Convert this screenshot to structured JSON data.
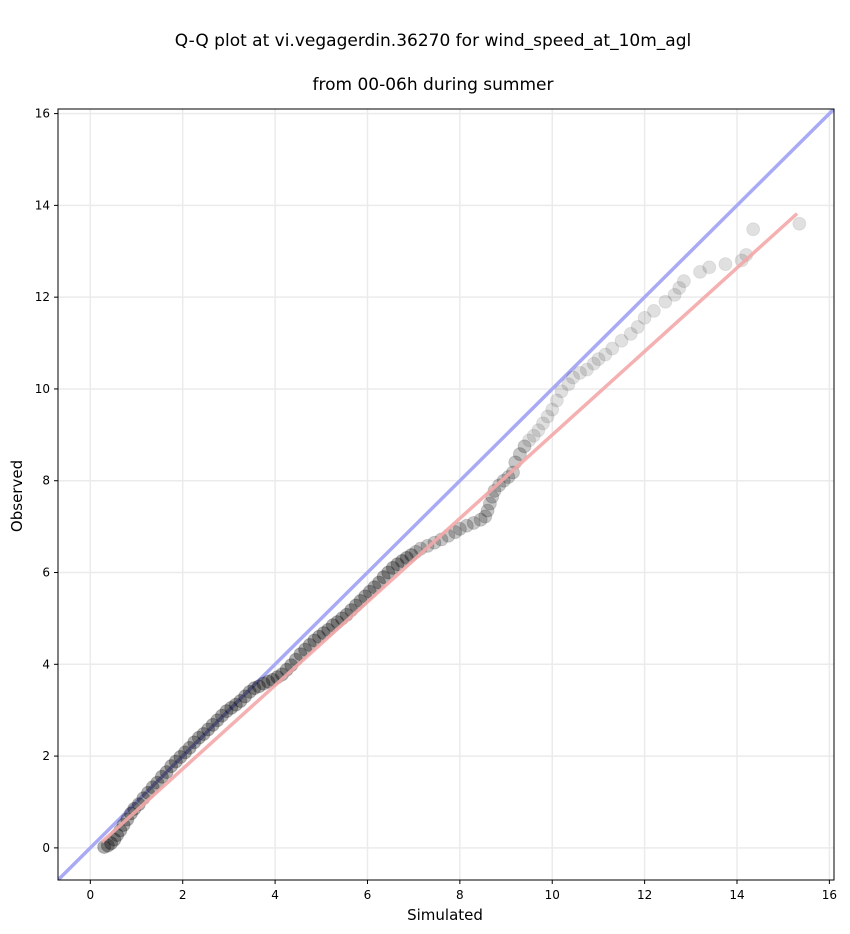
{
  "chart_data": {
    "type": "scatter",
    "title_lines": [
      "Q-Q plot at vi.vegagerdin.36270 for wind_speed_at_10m_agl",
      "from 00-06h during summer"
    ],
    "xlabel": "Simulated",
    "ylabel": "Observed",
    "xlim": [
      -0.7,
      16.1
    ],
    "ylim": [
      -0.7,
      16.1
    ],
    "xticks": [
      0,
      2,
      4,
      6,
      8,
      10,
      12,
      14,
      16
    ],
    "yticks": [
      0,
      2,
      4,
      6,
      8,
      10,
      12,
      14,
      16
    ],
    "grid": true,
    "reference_line": {
      "name": "1:1",
      "from": [
        -0.7,
        -0.7
      ],
      "to": [
        16.1,
        16.1
      ],
      "color": "#a9aaf5"
    },
    "fit_line": {
      "from": [
        0.25,
        0.13
      ],
      "to": [
        15.3,
        13.82
      ],
      "color": "#f4a9a9"
    },
    "points": {
      "color": "#000000",
      "x": [
        0.3,
        0.38,
        0.45,
        0.52,
        0.58,
        0.65,
        0.72,
        0.8,
        0.88,
        0.95,
        1.05,
        1.15,
        1.25,
        1.35,
        1.45,
        1.55,
        1.65,
        1.75,
        1.85,
        1.95,
        2.05,
        2.15,
        2.25,
        2.35,
        2.45,
        2.55,
        2.65,
        2.75,
        2.85,
        2.95,
        3.05,
        3.15,
        3.25,
        3.35,
        3.45,
        3.55,
        3.65,
        3.75,
        3.85,
        3.95,
        4.05,
        4.15,
        4.25,
        4.35,
        4.45,
        4.55,
        4.65,
        4.75,
        4.85,
        4.95,
        5.05,
        5.15,
        5.25,
        5.35,
        5.45,
        5.55,
        5.65,
        5.75,
        5.85,
        5.95,
        6.05,
        6.15,
        6.25,
        6.35,
        6.45,
        6.55,
        6.65,
        6.75,
        6.85,
        6.95,
        7.05,
        7.15,
        7.3,
        7.45,
        7.6,
        7.75,
        7.9,
        8.0,
        8.15,
        8.3,
        8.45,
        8.55,
        8.6,
        8.65,
        8.7,
        8.75,
        8.85,
        8.95,
        9.05,
        9.15,
        9.2,
        9.3,
        9.4,
        9.5,
        9.6,
        9.7,
        9.8,
        9.9,
        10.0,
        10.1,
        10.2,
        10.35,
        10.45,
        10.6,
        10.75,
        10.9,
        11.0,
        11.15,
        11.3,
        11.5,
        11.7,
        11.85,
        12.0,
        12.2,
        12.45,
        12.65,
        12.75,
        12.85,
        13.2,
        13.4,
        13.75,
        14.1,
        14.2,
        14.35,
        15.35
      ],
      "y": [
        0.02,
        0.05,
        0.1,
        0.18,
        0.28,
        0.38,
        0.5,
        0.62,
        0.75,
        0.85,
        0.95,
        1.08,
        1.2,
        1.32,
        1.42,
        1.55,
        1.65,
        1.78,
        1.88,
        1.98,
        2.08,
        2.18,
        2.3,
        2.4,
        2.48,
        2.58,
        2.68,
        2.78,
        2.88,
        2.98,
        3.05,
        3.12,
        3.2,
        3.3,
        3.4,
        3.48,
        3.52,
        3.58,
        3.62,
        3.66,
        3.72,
        3.78,
        3.88,
        3.98,
        4.1,
        4.22,
        4.32,
        4.42,
        4.52,
        4.6,
        4.68,
        4.75,
        4.85,
        4.92,
        5.0,
        5.08,
        5.18,
        5.28,
        5.38,
        5.48,
        5.58,
        5.68,
        5.78,
        5.9,
        6.0,
        6.1,
        6.18,
        6.25,
        6.32,
        6.38,
        6.45,
        6.52,
        6.58,
        6.65,
        6.72,
        6.8,
        6.88,
        6.95,
        7.02,
        7.08,
        7.15,
        7.22,
        7.35,
        7.5,
        7.65,
        7.78,
        7.9,
        8.0,
        8.08,
        8.18,
        8.4,
        8.58,
        8.75,
        8.88,
        8.98,
        9.1,
        9.25,
        9.4,
        9.55,
        9.75,
        9.95,
        10.1,
        10.25,
        10.35,
        10.42,
        10.55,
        10.65,
        10.75,
        10.88,
        11.05,
        11.2,
        11.35,
        11.55,
        11.7,
        11.9,
        12.05,
        12.2,
        12.35,
        12.55,
        12.65,
        12.72,
        12.8,
        12.92,
        13.48,
        13.6
      ]
    }
  }
}
